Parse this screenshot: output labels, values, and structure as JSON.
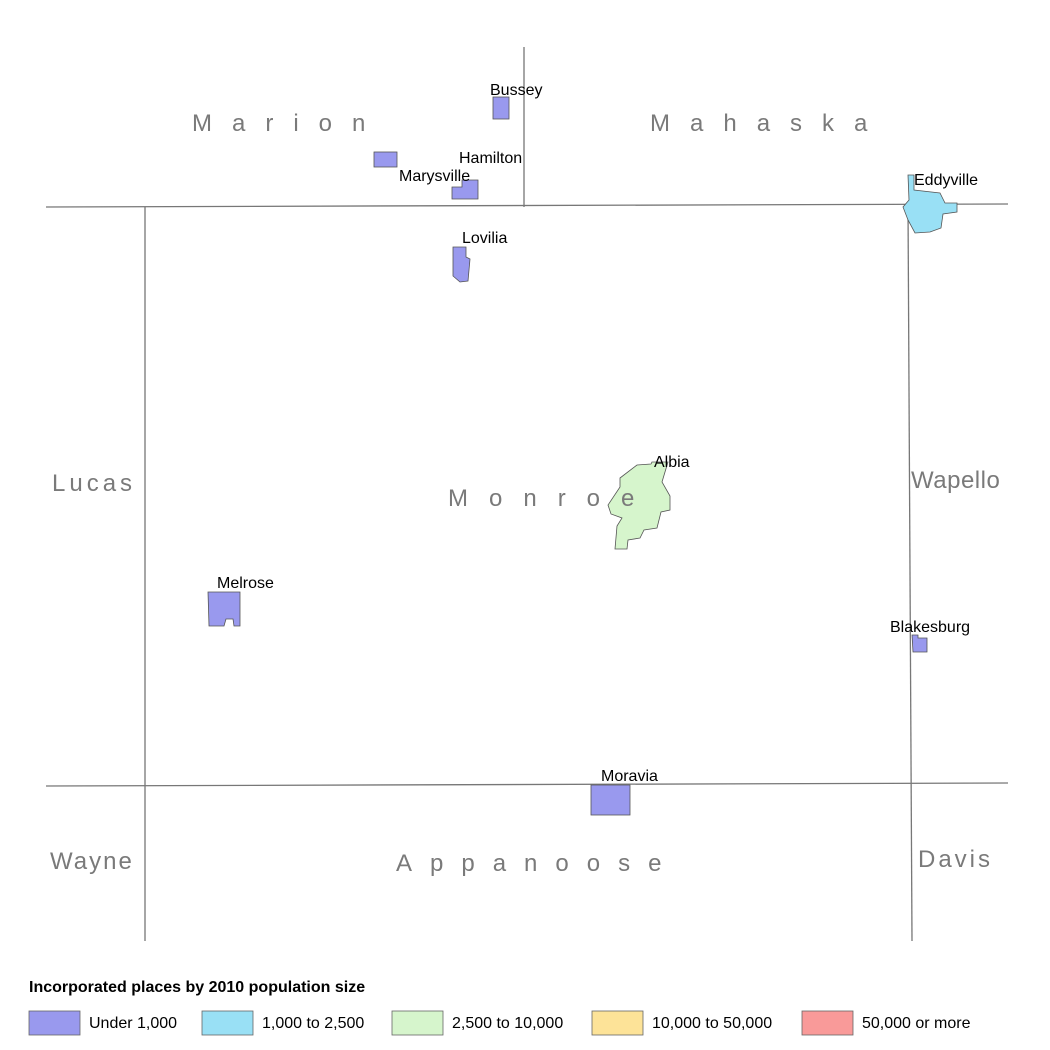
{
  "counties": [
    {
      "label": "Marion"
    },
    {
      "label": "Mahaska"
    },
    {
      "label": "Lucas"
    },
    {
      "label": "Monroe"
    },
    {
      "label": "Wapello"
    },
    {
      "label": "Wayne"
    },
    {
      "label": "Appanoose"
    },
    {
      "label": "Davis"
    }
  ],
  "places": [
    {
      "label": "Bussey"
    },
    {
      "label": "Hamilton"
    },
    {
      "label": "Marysville"
    },
    {
      "label": "Eddyville"
    },
    {
      "label": "Lovilia"
    },
    {
      "label": "Albia"
    },
    {
      "label": "Melrose"
    },
    {
      "label": "Blakesburg"
    },
    {
      "label": "Moravia"
    }
  ],
  "legend": {
    "title": "Incorporated places by 2010 population size",
    "items": [
      {
        "label": "Under 1,000",
        "color": "#9999ee"
      },
      {
        "label": "1,000 to 2,500",
        "color": "#99e0f5"
      },
      {
        "label": "2,500 to 10,000",
        "color": "#d6f5cc"
      },
      {
        "label": "10,000 to 50,000",
        "color": "#fde398"
      },
      {
        "label": "50,000 or more",
        "color": "#f99a99"
      }
    ]
  }
}
